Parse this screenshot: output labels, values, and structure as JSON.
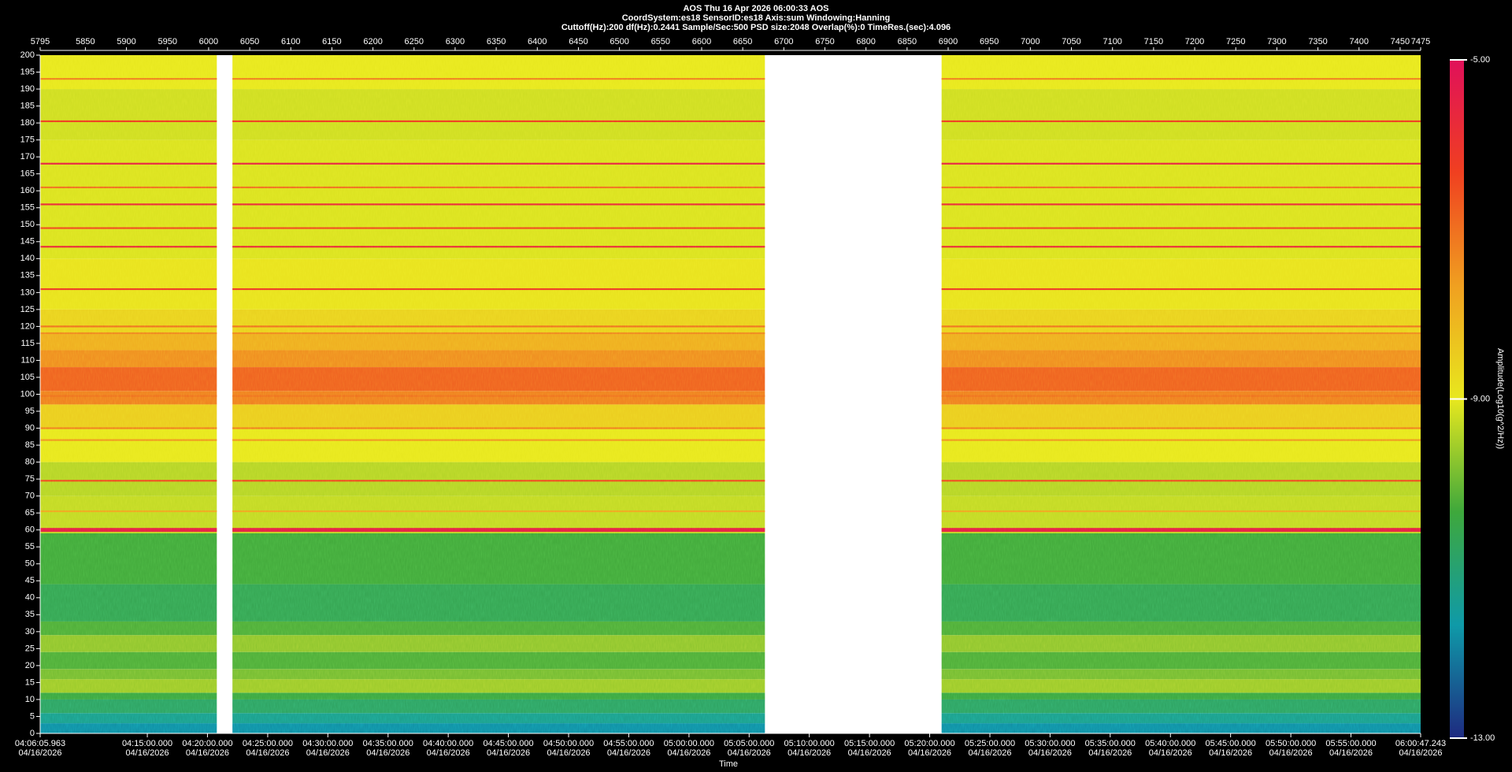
{
  "chart_data": {
    "type": "spectrogram",
    "title": [
      "AOS  Thu 16 Apr 2026 06:00:33  AOS",
      "CoordSystem:es18   SensorID:es18   Axis:sum   Windowing:Hanning",
      "Cuttoff(Hz):200     df(Hz):0.2441     Sample/Sec:500     PSD size:2048     Overlap(%):0     TimeRes.(sec):4.096"
    ],
    "xlabel": "Time",
    "colorbar_label": "Amplitude(Log10(g^2/Hz))",
    "xlim": [
      5795,
      7475
    ],
    "xticks": [
      5795,
      5850,
      5900,
      5950,
      6000,
      6050,
      6100,
      6150,
      6200,
      6250,
      6300,
      6350,
      6400,
      6450,
      6500,
      6550,
      6600,
      6650,
      6700,
      6750,
      6800,
      6850,
      6900,
      6950,
      7000,
      7050,
      7100,
      7150,
      7200,
      7250,
      7300,
      7350,
      7400,
      7450,
      7475
    ],
    "time_ticks": [
      {
        "value": 5795,
        "label": "04:06:05.963",
        "date": "04/16/2026"
      },
      {
        "value": 5925.4,
        "label": "04:15:00.000",
        "date": "04/16/2026"
      },
      {
        "value": 5998.6,
        "label": "04:20:00.000",
        "date": "04/16/2026"
      },
      {
        "value": 6071.9,
        "label": "04:25:00.000",
        "date": "04/16/2026"
      },
      {
        "value": 6145.1,
        "label": "04:30:00.000",
        "date": "04/16/2026"
      },
      {
        "value": 6218.4,
        "label": "04:35:00.000",
        "date": "04/16/2026"
      },
      {
        "value": 6291.6,
        "label": "04:40:00.000",
        "date": "04/16/2026"
      },
      {
        "value": 6364.8,
        "label": "04:45:00.000",
        "date": "04/16/2026"
      },
      {
        "value": 6438.1,
        "label": "04:50:00.000",
        "date": "04/16/2026"
      },
      {
        "value": 6511.3,
        "label": "04:55:00.000",
        "date": "04/16/2026"
      },
      {
        "value": 6584.6,
        "label": "05:00:00.000",
        "date": "04/16/2026"
      },
      {
        "value": 6657.8,
        "label": "05:05:00.000",
        "date": "04/16/2026"
      },
      {
        "value": 6731.0,
        "label": "05:10:00.000",
        "date": "04/16/2026"
      },
      {
        "value": 6804.3,
        "label": "05:15:00.000",
        "date": "04/16/2026"
      },
      {
        "value": 6877.5,
        "label": "05:20:00.000",
        "date": "04/16/2026"
      },
      {
        "value": 6950.8,
        "label": "05:25:00.000",
        "date": "04/16/2026"
      },
      {
        "value": 7024.0,
        "label": "05:30:00.000",
        "date": "04/16/2026"
      },
      {
        "value": 7097.2,
        "label": "05:35:00.000",
        "date": "04/16/2026"
      },
      {
        "value": 7170.5,
        "label": "05:40:00.000",
        "date": "04/16/2026"
      },
      {
        "value": 7243.7,
        "label": "05:45:00.000",
        "date": "04/16/2026"
      },
      {
        "value": 7317.0,
        "label": "05:50:00.000",
        "date": "04/16/2026"
      },
      {
        "value": 7390.2,
        "label": "05:55:00.000",
        "date": "04/16/2026"
      },
      {
        "value": 7475,
        "label": "06:00:47.243",
        "date": "04/16/2026"
      }
    ],
    "ylim": [
      0,
      200
    ],
    "yticks": [
      0,
      5,
      10,
      15,
      20,
      25,
      30,
      35,
      40,
      45,
      50,
      55,
      60,
      65,
      70,
      75,
      80,
      85,
      90,
      95,
      100,
      105,
      110,
      115,
      120,
      125,
      130,
      135,
      140,
      145,
      150,
      155,
      160,
      165,
      170,
      175,
      180,
      185,
      190,
      195,
      200
    ],
    "segments": [
      [
        5795,
        6010
      ],
      [
        6029,
        6677
      ],
      [
        6892,
        7475
      ]
    ],
    "profile": {
      "edges": [
        0,
        3,
        6,
        10,
        12,
        16,
        19,
        24,
        29,
        33,
        44,
        59,
        70,
        80,
        90,
        97,
        101,
        108,
        113,
        118,
        125,
        140,
        175,
        190,
        200
      ],
      "amplitude": [
        -11.8,
        -11.3,
        -10.8,
        -10.4,
        -9.6,
        -9.9,
        -10.2,
        -9.7,
        -10.2,
        -10.6,
        -10.3,
        -9.3,
        -9.4,
        -9.0,
        -8.5,
        -7.2,
        -6.8,
        -7.4,
        -7.9,
        -8.6,
        -8.9,
        -9.1,
        -9.2,
        -9.0
      ]
    },
    "peaks": {
      "freq": [
        60,
        65.5,
        74.5,
        86.5,
        90,
        99.5,
        118,
        120,
        131,
        143.5,
        149,
        156,
        161,
        168,
        180.5,
        193
      ],
      "amplitude": [
        -5.5,
        -7.8,
        -6.5,
        -7.5,
        -7.2,
        -7.0,
        -7.3,
        -7.0,
        -6.2,
        -5.8,
        -6.5,
        -5.8,
        -7.0,
        -5.6,
        -6.3,
        -7.2
      ]
    },
    "clim": [
      -13,
      -5
    ],
    "cticks": [
      {
        "value": -13,
        "label": "-13.00"
      },
      {
        "value": -9,
        "label": "-9.00"
      },
      {
        "value": -5,
        "label": "-5.00"
      }
    ],
    "colormap": [
      "#1e2a80",
      "#0f9aa8",
      "#3ea83c",
      "#e8e81e",
      "#f0a020",
      "#f04020",
      "#e0105a"
    ]
  }
}
